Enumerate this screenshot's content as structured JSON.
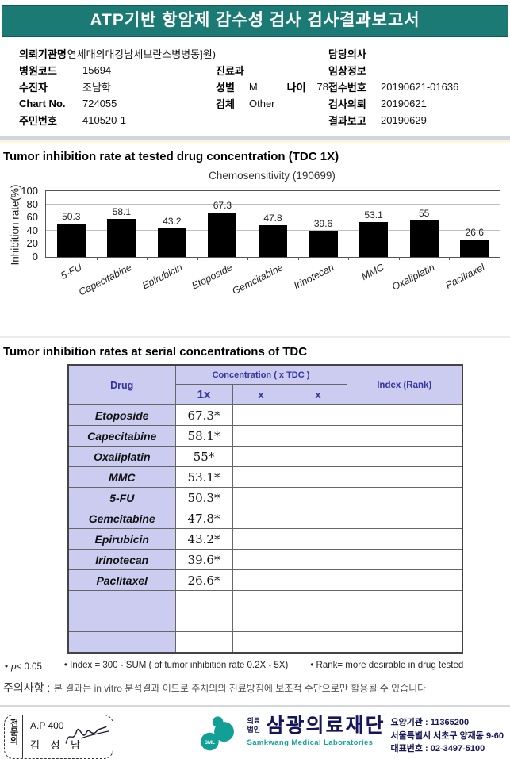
{
  "colors": {
    "teal_bar": "#1b7b74",
    "logo_teal": "#12a096",
    "navy": "#15155a",
    "table_header_bg": "#ccccf0",
    "table_header_text": "#3333a2",
    "bar_color": "#000000"
  },
  "title_bar": {
    "title": "ATP기반 항암제 감수성 검사 검사결과보고서"
  },
  "patient_info": {
    "left": [
      {
        "label": "의뢰기관명",
        "value": "연세대의대강남세브란스병병동]원)"
      },
      {
        "label": "병원코드",
        "value": "15694"
      },
      {
        "label": "수진자",
        "value": "조남학"
      },
      {
        "label": "Chart No.",
        "value": "724055"
      },
      {
        "label": "주민번호",
        "value": "410520-1"
      }
    ],
    "middle": {
      "dept_label": "진료과",
      "dept_value": "",
      "sex_label": "성별",
      "sex_value": "M",
      "age_label": "나이",
      "age_value": "78",
      "specimen_label": "검체",
      "specimen_value": "Other"
    },
    "right": [
      {
        "label": "담당의사",
        "value": ""
      },
      {
        "label": "임상정보",
        "value": ""
      },
      {
        "label": "접수번호",
        "value": "20190621-01636"
      },
      {
        "label": "검사의뢰",
        "value": "20190621"
      },
      {
        "label": "결과보고",
        "value": "20190629"
      }
    ]
  },
  "section1": {
    "heading": "Tumor inhibition rate at tested drug concentration (TDC 1X)"
  },
  "chart_data": {
    "type": "bar",
    "title": "Chemosensitivity (190699)",
    "ylabel": "Inhibition rate(%)",
    "xlabel": "",
    "ylim": [
      0,
      100
    ],
    "yticks": [
      0,
      20,
      40,
      60,
      80,
      100
    ],
    "grid": true,
    "legend": false,
    "bar_color": "#000000",
    "categories": [
      "5-FU",
      "Capecitabine",
      "Epirubicin",
      "Etoposide",
      "Gemcitabine",
      "Irinotecan",
      "MMC",
      "Oxaliplatin",
      "Paclitaxel"
    ],
    "values": [
      50.3,
      58.1,
      43.2,
      67.3,
      47.8,
      39.6,
      53.1,
      55,
      26.6
    ]
  },
  "section2": {
    "heading": "Tumor inhibition rates at serial concentrations of TDC"
  },
  "table": {
    "col_drug": "Drug",
    "col_concentration": "Concentration ( x TDC )",
    "col_index": "Index (Rank)",
    "subcols": [
      "1x",
      "x",
      "x"
    ],
    "rows": [
      {
        "drug": "Etoposide",
        "c1": "67.3*",
        "c2": "",
        "c3": "",
        "index": ""
      },
      {
        "drug": "Capecitabine",
        "c1": "58.1*",
        "c2": "",
        "c3": "",
        "index": ""
      },
      {
        "drug": "Oxaliplatin",
        "c1": "55*",
        "c2": "",
        "c3": "",
        "index": ""
      },
      {
        "drug": "MMC",
        "c1": "53.1*",
        "c2": "",
        "c3": "",
        "index": ""
      },
      {
        "drug": "5-FU",
        "c1": "50.3*",
        "c2": "",
        "c3": "",
        "index": ""
      },
      {
        "drug": "Gemcitabine",
        "c1": "47.8*",
        "c2": "",
        "c3": "",
        "index": ""
      },
      {
        "drug": "Epirubicin",
        "c1": "43.2*",
        "c2": "",
        "c3": "",
        "index": ""
      },
      {
        "drug": "Irinotecan",
        "c1": "39.6*",
        "c2": "",
        "c3": "",
        "index": ""
      },
      {
        "drug": "Paclitaxel",
        "c1": "26.6*",
        "c2": "",
        "c3": "",
        "index": ""
      },
      {
        "drug": "",
        "c1": "",
        "c2": "",
        "c3": "",
        "index": ""
      },
      {
        "drug": "",
        "c1": "",
        "c2": "",
        "c3": "",
        "index": ""
      },
      {
        "drug": "",
        "c1": "",
        "c2": "",
        "c3": "",
        "index": ""
      }
    ]
  },
  "footnotes": {
    "bullet": "•",
    "p_italic": "p",
    "p_rest": "< 0.05",
    "index_text": "Index = 300 - SUM ( of tumor inhibition rate 0.2X  -  5X)",
    "rank_text": "Rank= more desirable in drug tested"
  },
  "notice": {
    "label": "주의사항 :",
    "text": "본 결과는 in vitro 분석결과 이므로 주치의의 진료방침에 보조적 수단으로만 활용될 수 있습니다"
  },
  "footer": {
    "stamp": {
      "vertical_label": "전문의",
      "line1": "A.P 400",
      "line2": "김 성 남"
    },
    "logo": {
      "text": "SML",
      "org_type": "의료법인",
      "org_name": "삼광의료재단",
      "org_name_en": "Samkwang Medical Laboratories"
    },
    "contact": [
      "요양기관 : 11365200",
      "서울특별시 서초구 양재동 9-60",
      "대표번호 : 02-3497-5100"
    ]
  }
}
